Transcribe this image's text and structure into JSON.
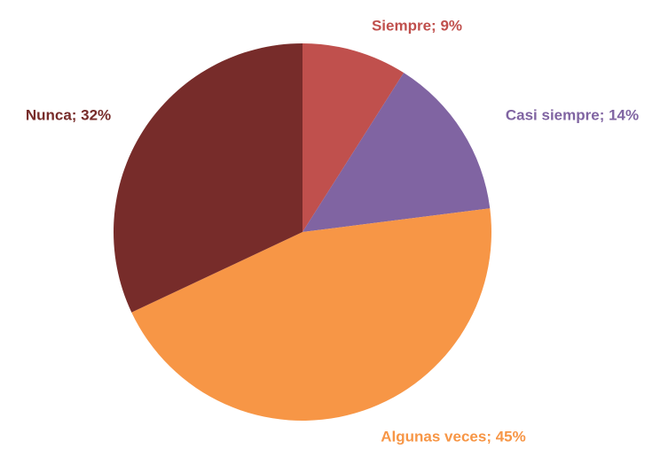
{
  "chart_data": {
    "type": "pie",
    "values": [
      9,
      14,
      45,
      32
    ],
    "value_labels": [
      "Siempre; 9%",
      "Casi siempre; 14%",
      "Algunas veces; 45%",
      "Nunca; 32%"
    ],
    "colors": [
      "#c0504d",
      "#8064a2",
      "#f79646",
      "#772c2a"
    ]
  }
}
